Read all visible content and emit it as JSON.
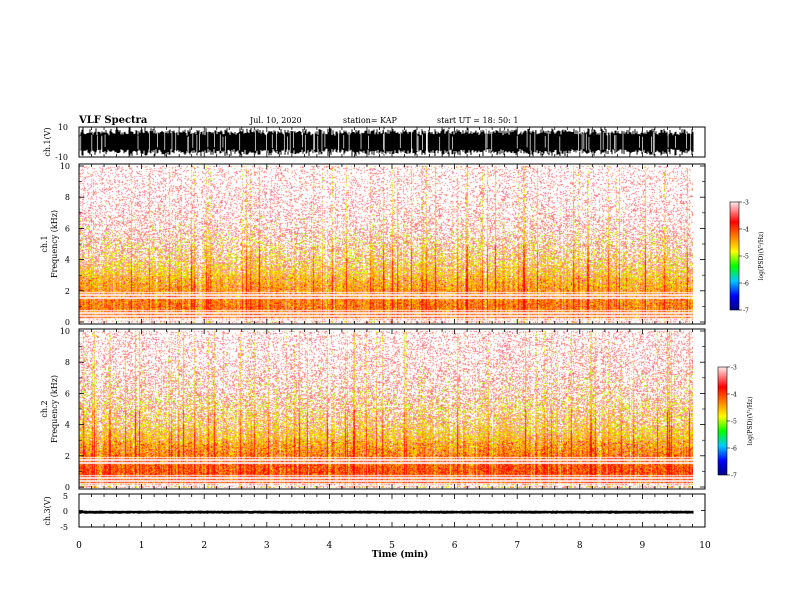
{
  "header": {
    "title": "VLF Spectra",
    "date": "Jul. 10, 2020",
    "station": "station= KAP",
    "start_time": "start UT = 18: 50: 1"
  },
  "colors": {
    "colormap": [
      "#000080",
      "#0000ff",
      "#00c0ff",
      "#00ff00",
      "#ffff00",
      "#ff8000",
      "#ff0000",
      "#ffb0b0",
      "#ffffff"
    ],
    "waveform": "#000000",
    "axes": "#000000"
  },
  "chart_data": [
    {
      "type": "line",
      "panel": "ch1-waveform",
      "ylabel": "ch.1(V)",
      "yticks": [
        "10",
        "-10"
      ],
      "ylim": [
        -10,
        10
      ],
      "xlim": [
        0,
        10
      ],
      "note_values": "saturated broadband waveform, amplitude spanning approx -10 to 10 V"
    },
    {
      "type": "heatmap",
      "panel": "ch1-spectrogram",
      "ylabel_line1": "ch.1",
      "ylabel_line2": "Frequency (kHz)",
      "yticks": [
        "0",
        "2",
        "4",
        "6",
        "8",
        "10"
      ],
      "ylim": [
        0,
        10
      ],
      "xlim": [
        0,
        10
      ],
      "colorbar": {
        "label": "log(PSD)(V²/Hz)",
        "ticks": [
          "-3",
          "-4",
          "-5",
          "-6",
          "-7"
        ],
        "range": [
          -7,
          -3
        ]
      },
      "band_profile_khz": [
        [
          0.5,
          -3.6
        ],
        [
          1.5,
          -3.7
        ],
        [
          2.5,
          -4.0
        ],
        [
          4,
          -4.6
        ],
        [
          6,
          -5.0
        ],
        [
          8,
          -5.2
        ],
        [
          10,
          -5.3
        ]
      ]
    },
    {
      "type": "heatmap",
      "panel": "ch2-spectrogram",
      "ylabel_line1": "ch.2",
      "ylabel_line2": "Frequency (kHz)",
      "yticks": [
        "0",
        "2",
        "4",
        "6",
        "8",
        "10"
      ],
      "ylim": [
        0,
        10
      ],
      "xlim": [
        0,
        10
      ],
      "colorbar": {
        "label": "log(PSD)(V²/Hz)",
        "ticks": [
          "-3",
          "-4",
          "-5",
          "-6",
          "-7"
        ],
        "range": [
          -7,
          -3
        ]
      },
      "band_profile_khz": [
        [
          0.5,
          -3.4
        ],
        [
          1.5,
          -3.5
        ],
        [
          2.5,
          -3.9
        ],
        [
          4,
          -4.5
        ],
        [
          6,
          -4.9
        ],
        [
          8,
          -5.1
        ],
        [
          10,
          -5.2
        ]
      ]
    },
    {
      "type": "line",
      "panel": "ch3-waveform",
      "ylabel": "ch.3(V)",
      "yticks": [
        "5",
        "0",
        "-5"
      ],
      "ylim": [
        -5,
        5
      ],
      "xlim": [
        0,
        10
      ],
      "note_values": "flat signal near -0.5 V with small ripple"
    }
  ],
  "xaxis": {
    "label": "Time (min)",
    "ticks": [
      "0",
      "1",
      "2",
      "3",
      "4",
      "5",
      "6",
      "7",
      "8",
      "9",
      "10"
    ],
    "range": [
      0,
      10
    ]
  }
}
